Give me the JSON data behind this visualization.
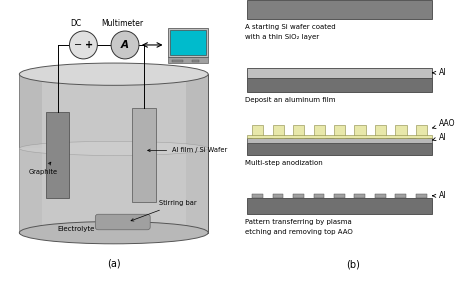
{
  "panel_a_label": "(a)",
  "panel_b_label": "(b)",
  "colors": {
    "tank_body": "#c8c8c8",
    "tank_dark": "#a8a8a8",
    "tank_top": "#d8d8d8",
    "tank_bottom_fill": "#b8b8b8",
    "electrode_graphite": "#888888",
    "electrode_al": "#b4b4b4",
    "electrolyte_surface": "#c0c0c0",
    "stirbar": "#a0a0a0",
    "dc_circle": "#e0e0e0",
    "ammeter_circle": "#c8c8c8",
    "computer_screen": "#00bbcc",
    "computer_body": "#a0a0a0",
    "si_dark": "#707070",
    "si_light": "#909090",
    "al_film": "#bebebe",
    "aao": "#e8e8aa",
    "text_color": "#000000"
  },
  "step1_text_line1": "A starting Si wafer coated",
  "step1_text_line2": "with a thin SiO₂ layer",
  "step2_text": "Deposit an aluminum film",
  "step3_text": "Multi-step anodization",
  "step4_text_line1": "Pattern transferring by plasma",
  "step4_text_line2": "etching and removing top AAO",
  "label_al": "Al",
  "label_aao": "AAO",
  "dc_label": "DC",
  "multimeter_label": "Multimeter",
  "ammeter_label": "A",
  "label_al_film": "Al film / Si Wafer",
  "label_graphite": "Graphite",
  "label_stirring_bar": "Stirring bar",
  "label_electrolyte": "Electrolyte"
}
